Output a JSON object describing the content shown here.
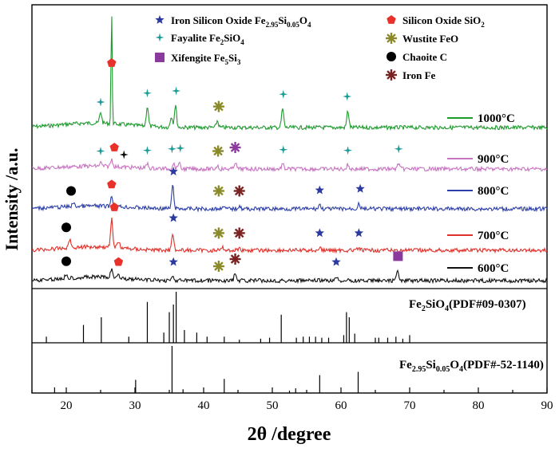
{
  "chart_data": {
    "type": "line",
    "title": "",
    "xlabel": "2θ /degree",
    "ylabel": "Intensity /a.u.",
    "xlim": [
      15,
      90
    ],
    "x_ticks": [
      20,
      30,
      40,
      50,
      60,
      70,
      80,
      90
    ],
    "legend": [
      {
        "symbol": "star",
        "color": "#2c3aa0",
        "text": "Iron Silicon Oxide Fe",
        "sub1": "2.95",
        "mid": "Si",
        "sub2": "0.05",
        "tail": "O",
        "sub3": "4"
      },
      {
        "symbol": "sparkle",
        "color": "#1a9a96",
        "text": "Fayalite      Fe",
        "sub1": "2",
        "mid": "SiO",
        "sub2": "4",
        "tail": "",
        "sub3": ""
      },
      {
        "symbol": "square",
        "color": "#8a3a9c",
        "text": "Xifengite      Fe",
        "sub1": "5",
        "mid": "Si",
        "sub2": "3",
        "tail": "",
        "sub3": ""
      },
      {
        "symbol": "pentagon",
        "color": "#e8312b",
        "text": "Silicon   Oxide SiO",
        "sub1": "2",
        "mid": "",
        "sub2": "",
        "tail": "",
        "sub3": ""
      },
      {
        "symbol": "asterisk",
        "color": "#8a8a2a",
        "text": "Wustite FeO",
        "sub1": "",
        "mid": "",
        "sub2": "",
        "tail": "",
        "sub3": ""
      },
      {
        "symbol": "circle",
        "color": "#000000",
        "text": "Chaoite   C",
        "sub1": "",
        "mid": "",
        "sub2": "",
        "tail": "",
        "sub3": ""
      },
      {
        "symbol": "asterisk",
        "color": "#7a2222",
        "text": "Iron       Fe",
        "sub1": "",
        "mid": "",
        "sub2": "",
        "tail": "",
        "sub3": ""
      }
    ],
    "series": [
      {
        "name": "1000°C",
        "color": "#1f9a2e",
        "peaks": [
          [
            26.6,
            1.0
          ],
          [
            25.0,
            0.1
          ],
          [
            31.8,
            0.18
          ],
          [
            35.3,
            0.1
          ],
          [
            35.9,
            0.2
          ],
          [
            42.0,
            0.06
          ],
          [
            51.5,
            0.17
          ],
          [
            61.0,
            0.15
          ]
        ],
        "markers": [
          [
            26.6,
            "pentagon"
          ],
          [
            25.0,
            "sparkle"
          ],
          [
            31.8,
            "sparkle"
          ],
          [
            36.0,
            "sparkle"
          ],
          [
            42.2,
            "asterisk-olive"
          ],
          [
            51.6,
            "sparkle"
          ],
          [
            60.9,
            "sparkle"
          ]
        ]
      },
      {
        "name": "900°C",
        "color": "#c774c1",
        "peaks": [
          [
            25.0,
            0.05
          ],
          [
            26.6,
            0.1
          ],
          [
            31.8,
            0.06
          ],
          [
            35.6,
            0.08
          ],
          [
            36.4,
            0.09
          ],
          [
            42.0,
            0.05
          ],
          [
            44.6,
            0.1
          ],
          [
            51.5,
            0.07
          ],
          [
            61.0,
            0.06
          ],
          [
            68.4,
            0.08
          ]
        ],
        "markers": [
          [
            25.0,
            "sparkle"
          ],
          [
            27.0,
            "pentagon"
          ],
          [
            28.4,
            "sparkle-black"
          ],
          [
            31.8,
            "sparkle"
          ],
          [
            35.4,
            "sparkle"
          ],
          [
            36.6,
            "sparkle"
          ],
          [
            42.1,
            "asterisk-olive"
          ],
          [
            44.6,
            "asterisk-purple"
          ],
          [
            51.6,
            "sparkle"
          ],
          [
            61.0,
            "sparkle"
          ],
          [
            68.4,
            "sparkle"
          ]
        ]
      },
      {
        "name": "800°C",
        "color": "#2d3fa8",
        "peaks": [
          [
            21.0,
            0.05
          ],
          [
            26.6,
            0.14
          ],
          [
            35.5,
            0.32
          ],
          [
            42.8,
            0.05
          ],
          [
            45.2,
            0.05
          ],
          [
            56.9,
            0.06
          ],
          [
            62.6,
            0.08
          ]
        ],
        "markers": [
          [
            20.7,
            "circle"
          ],
          [
            26.6,
            "pentagon"
          ],
          [
            35.6,
            "star"
          ],
          [
            42.2,
            "asterisk-olive"
          ],
          [
            45.2,
            "asterisk-brown"
          ],
          [
            56.9,
            "star"
          ],
          [
            62.8,
            "star"
          ]
        ]
      },
      {
        "name": "700°C",
        "color": "#e0302a",
        "peaks": [
          [
            20.5,
            0.12
          ],
          [
            26.6,
            0.4
          ],
          [
            27.6,
            0.1
          ],
          [
            35.5,
            0.25
          ],
          [
            42.8,
            0.04
          ],
          [
            45.2,
            0.04
          ],
          [
            56.9,
            0.04
          ],
          [
            62.6,
            0.04
          ]
        ],
        "markers": [
          [
            20.0,
            "circle"
          ],
          [
            27.0,
            "pentagon"
          ],
          [
            35.6,
            "star"
          ],
          [
            42.2,
            "asterisk-olive"
          ],
          [
            45.2,
            "asterisk-brown"
          ],
          [
            56.9,
            "star"
          ],
          [
            62.6,
            "star"
          ]
        ]
      },
      {
        "name": "600°C",
        "color": "#111111",
        "peaks": [
          [
            20.0,
            0.07
          ],
          [
            26.6,
            0.12
          ],
          [
            27.6,
            0.06
          ],
          [
            35.5,
            0.06
          ],
          [
            44.6,
            0.1
          ],
          [
            59.4,
            0.06
          ],
          [
            68.2,
            0.14
          ]
        ],
        "markers": [
          [
            20.0,
            "circle"
          ],
          [
            27.6,
            "pentagon"
          ],
          [
            35.6,
            "star"
          ],
          [
            42.2,
            "asterisk-olive"
          ],
          [
            44.6,
            "asterisk-brown"
          ],
          [
            59.3,
            "star"
          ],
          [
            68.3,
            "square"
          ]
        ]
      }
    ],
    "reference_1": {
      "label_a": "Fe",
      "sub_a": "2",
      "label_b": "SiO",
      "sub_b": "4",
      "label_c": "(PDF#09-0307)",
      "lines": [
        [
          17.1,
          0.12
        ],
        [
          22.5,
          0.35
        ],
        [
          25.1,
          0.5
        ],
        [
          29.1,
          0.12
        ],
        [
          31.8,
          0.8
        ],
        [
          34.2,
          0.2
        ],
        [
          35.0,
          0.6
        ],
        [
          35.6,
          0.75
        ],
        [
          36.0,
          1.0
        ],
        [
          37.2,
          0.25
        ],
        [
          39.0,
          0.2
        ],
        [
          40.5,
          0.12
        ],
        [
          43.0,
          0.12
        ],
        [
          45.2,
          0.06
        ],
        [
          48.3,
          0.08
        ],
        [
          49.6,
          0.1
        ],
        [
          51.3,
          0.55
        ],
        [
          53.5,
          0.1
        ],
        [
          54.5,
          0.12
        ],
        [
          55.4,
          0.12
        ],
        [
          56.3,
          0.12
        ],
        [
          57.2,
          0.1
        ],
        [
          58.2,
          0.1
        ],
        [
          60.4,
          0.15
        ],
        [
          60.8,
          0.6
        ],
        [
          61.2,
          0.5
        ],
        [
          62.0,
          0.18
        ],
        [
          65.0,
          0.1
        ],
        [
          65.5,
          0.1
        ],
        [
          66.8,
          0.1
        ],
        [
          68.0,
          0.12
        ],
        [
          69.0,
          0.08
        ],
        [
          70.0,
          0.15
        ]
      ]
    },
    "reference_2": {
      "label_a": "Fe",
      "sub_a": "2.95",
      "label_b": "Si",
      "sub_b": "0.05",
      "label_c": "O",
      "sub_c": "4",
      "label_d": "(PDF#-52-1140)",
      "lines": [
        [
          18.3,
          0.12
        ],
        [
          30.1,
          0.28
        ],
        [
          35.4,
          1.0
        ],
        [
          37.0,
          0.08
        ],
        [
          43.0,
          0.3
        ],
        [
          53.4,
          0.1
        ],
        [
          56.9,
          0.38
        ],
        [
          62.5,
          0.45
        ],
        [
          52.5,
          0.05
        ]
      ]
    }
  }
}
